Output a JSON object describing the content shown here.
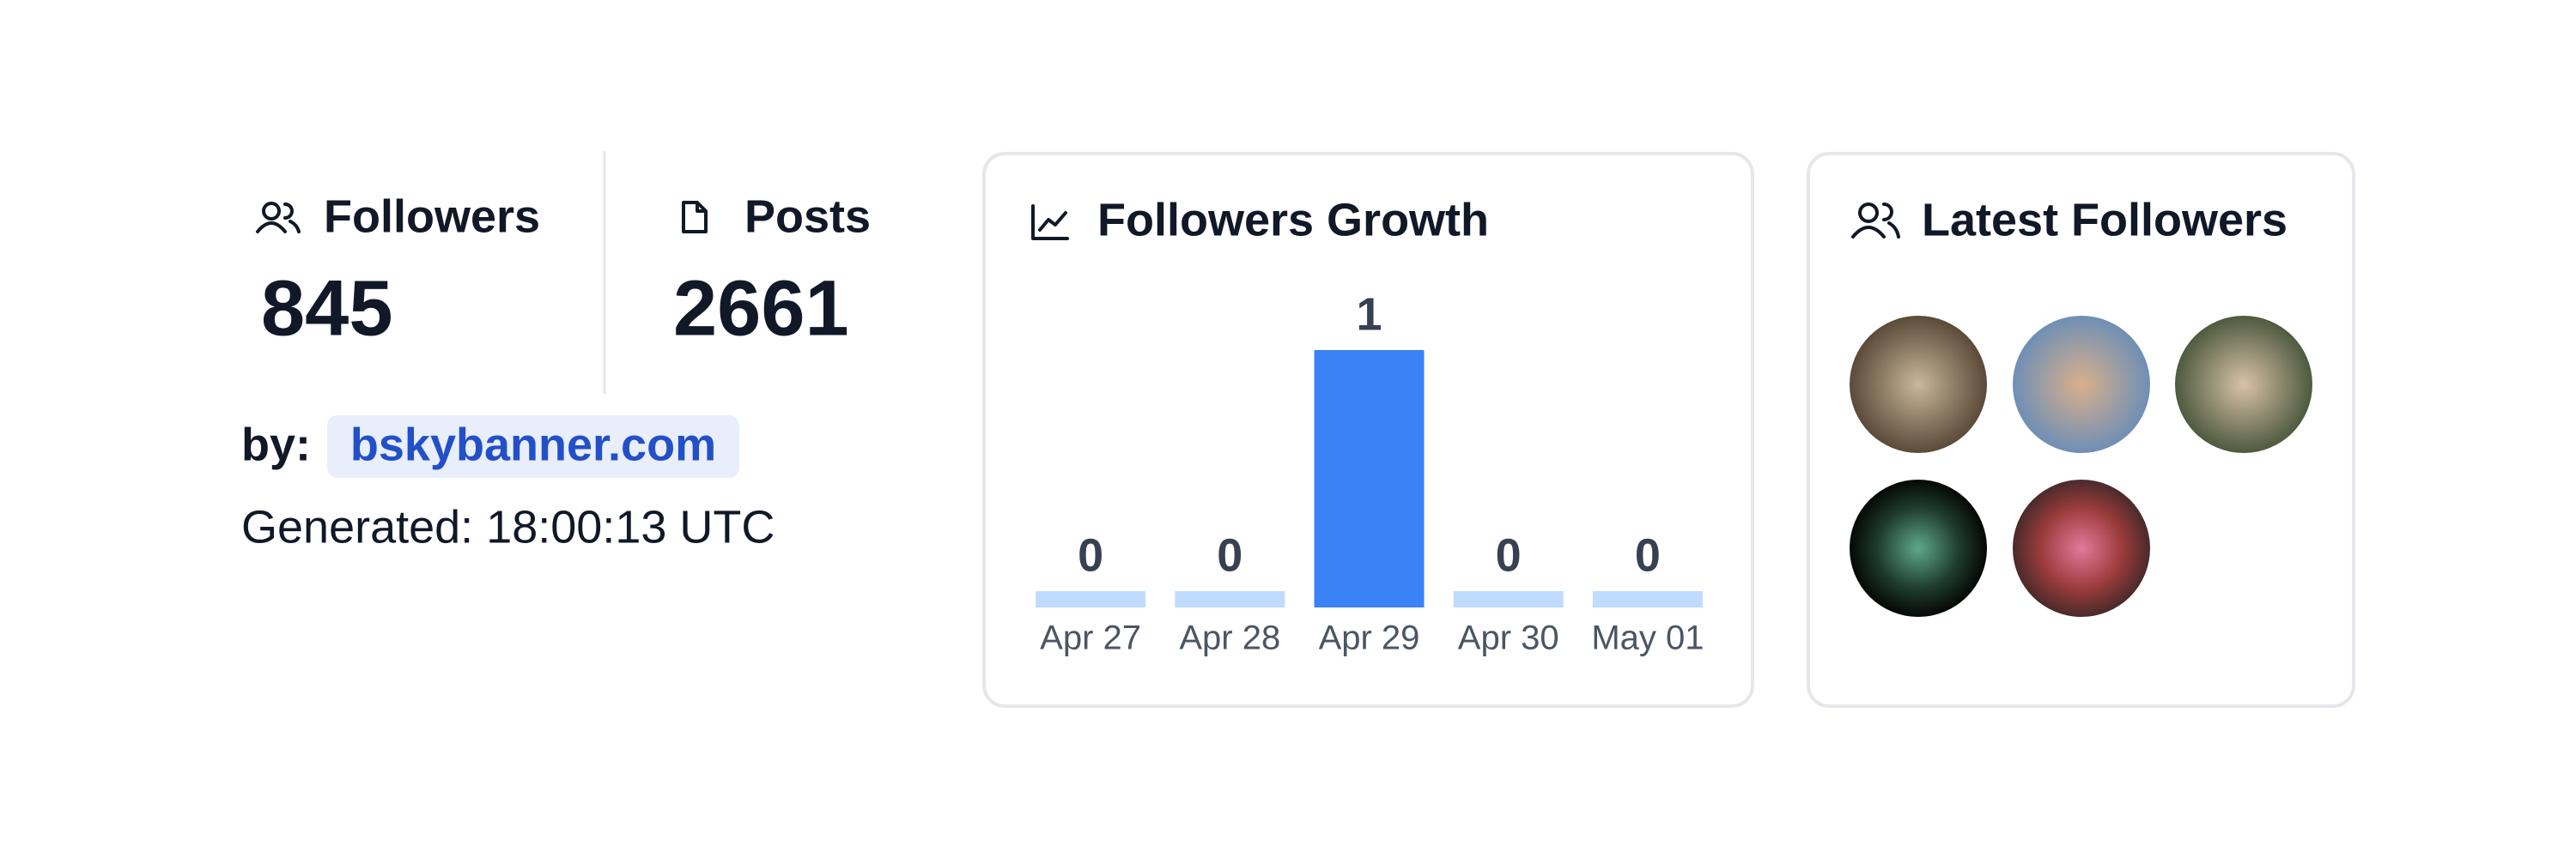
{
  "stats": [
    {
      "label": "Followers",
      "value": 845
    },
    {
      "label": "Posts",
      "value": 2661
    }
  ],
  "by_label": "by:",
  "by_link": "bskybanner.com",
  "generated": "Generated: 18:00:13 UTC",
  "chart_data": {
    "type": "bar",
    "title": "Followers Growth",
    "categories": [
      "Apr 27",
      "Apr 28",
      "Apr 29",
      "Apr 30",
      "May 01"
    ],
    "values": [
      0,
      0,
      1,
      0,
      0
    ],
    "color": "#3b82f6",
    "empty_color": "#bfdbfe"
  },
  "latest_followers": {
    "title": "Latest Followers"
  }
}
